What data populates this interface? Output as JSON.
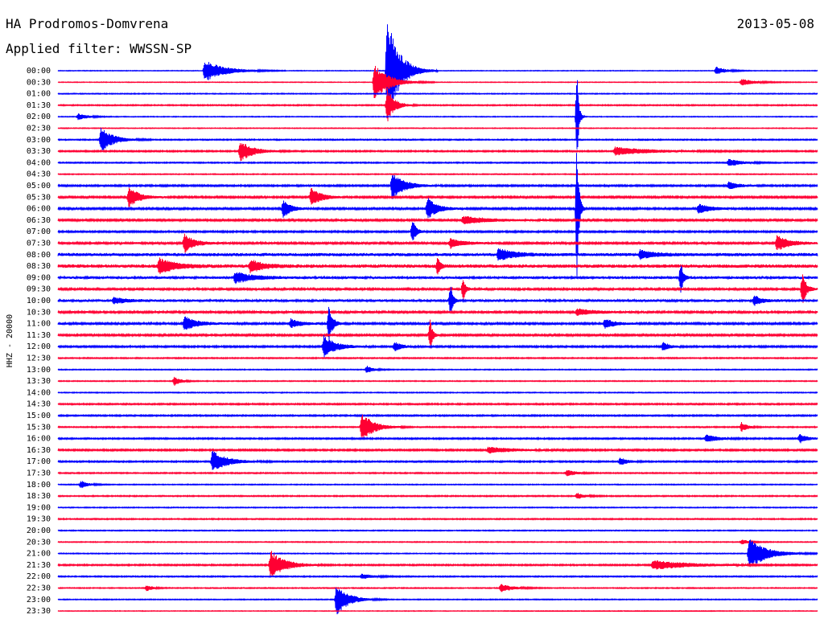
{
  "header": {
    "station": "HA Prodromos-Domvrena",
    "filter": "Applied filter: WWSSN-SP",
    "date": "2013-05-08"
  },
  "colors": {
    "odd_hour_trace": "#0000ff",
    "half_hour_trace": "#ff0033",
    "text": "#000000"
  },
  "chart_data": {
    "type": "line",
    "title": "",
    "channel_label": "HHZ - 20000",
    "row_labels": [
      "00:00",
      "00:30",
      "01:00",
      "01:30",
      "02:00",
      "02:30",
      "03:00",
      "03:30",
      "04:00",
      "04:30",
      "05:00",
      "05:30",
      "06:00",
      "06:30",
      "07:00",
      "07:30",
      "08:00",
      "08:30",
      "09:00",
      "09:30",
      "10:00",
      "10:30",
      "11:00",
      "11:30",
      "12:00",
      "12:30",
      "13:00",
      "13:30",
      "14:00",
      "14:30",
      "15:00",
      "15:30",
      "16:00",
      "16:30",
      "17:00",
      "17:30",
      "18:00",
      "18:30",
      "19:00",
      "19:30",
      "20:00",
      "20:30",
      "21:00",
      "21:30",
      "22:00",
      "22:30",
      "23:00",
      "23:30"
    ],
    "minutes_per_row": 30,
    "noise_level": [
      0.3,
      0.3,
      0.4,
      0.5,
      0.35,
      0.35,
      0.5,
      0.6,
      0.5,
      0.4,
      0.7,
      0.8,
      0.8,
      0.8,
      0.7,
      0.9,
      1.4,
      1.5,
      1.1,
      0.9,
      1.1,
      0.9,
      0.9,
      0.8,
      0.7,
      0.5,
      0.4,
      0.4,
      0.4,
      0.6,
      0.6,
      0.5,
      0.6,
      0.7,
      0.6,
      0.5,
      0.4,
      0.5,
      0.4,
      0.5,
      0.4,
      0.4,
      0.4,
      0.6,
      0.5,
      0.4,
      0.4,
      0.3
    ],
    "events": [
      {
        "row": 0,
        "minute": 5.8,
        "amplitude": 14,
        "duration_min": 1.6
      },
      {
        "row": 0,
        "minute": 13.0,
        "amplitude": 70,
        "duration_min": 1.0
      },
      {
        "row": 0,
        "minute": 26.0,
        "amplitude": 5,
        "duration_min": 0.8
      },
      {
        "row": 1,
        "minute": 12.5,
        "amplitude": 24,
        "duration_min": 1.2
      },
      {
        "row": 1,
        "minute": 27.0,
        "amplitude": 4,
        "duration_min": 1.2
      },
      {
        "row": 3,
        "minute": 13.0,
        "amplitude": 22,
        "duration_min": 0.6
      },
      {
        "row": 4,
        "minute": 0.8,
        "amplitude": 4,
        "duration_min": 0.8
      },
      {
        "row": 4,
        "minute": 20.5,
        "amplitude": 60,
        "duration_min": 0.15
      },
      {
        "row": 6,
        "minute": 1.7,
        "amplitude": 16,
        "duration_min": 1.0
      },
      {
        "row": 7,
        "minute": 7.2,
        "amplitude": 14,
        "duration_min": 1.0
      },
      {
        "row": 7,
        "minute": 22.0,
        "amplitude": 5,
        "duration_min": 3.0
      },
      {
        "row": 8,
        "minute": 26.5,
        "amplitude": 5,
        "duration_min": 1.0
      },
      {
        "row": 10,
        "minute": 13.2,
        "amplitude": 18,
        "duration_min": 1.0
      },
      {
        "row": 10,
        "minute": 26.5,
        "amplitude": 5,
        "duration_min": 0.8
      },
      {
        "row": 11,
        "minute": 2.8,
        "amplitude": 14,
        "duration_min": 0.8
      },
      {
        "row": 11,
        "minute": 10.0,
        "amplitude": 12,
        "duration_min": 0.8
      },
      {
        "row": 12,
        "minute": 8.9,
        "amplitude": 12,
        "duration_min": 0.6
      },
      {
        "row": 12,
        "minute": 14.6,
        "amplitude": 14,
        "duration_min": 0.8
      },
      {
        "row": 12,
        "minute": 20.5,
        "amplitude": 100,
        "duration_min": 0.15
      },
      {
        "row": 12,
        "minute": 25.3,
        "amplitude": 6,
        "duration_min": 1.0
      },
      {
        "row": 13,
        "minute": 16.0,
        "amplitude": 5,
        "duration_min": 2.0
      },
      {
        "row": 14,
        "minute": 14.0,
        "amplitude": 16,
        "duration_min": 0.3
      },
      {
        "row": 15,
        "minute": 5.0,
        "amplitude": 12,
        "duration_min": 0.8
      },
      {
        "row": 15,
        "minute": 15.5,
        "amplitude": 6,
        "duration_min": 1.0
      },
      {
        "row": 15,
        "minute": 28.4,
        "amplitude": 10,
        "duration_min": 1.0
      },
      {
        "row": 16,
        "minute": 17.4,
        "amplitude": 8,
        "duration_min": 1.2
      },
      {
        "row": 16,
        "minute": 23.0,
        "amplitude": 6,
        "duration_min": 1.0
      },
      {
        "row": 17,
        "minute": 4.0,
        "amplitude": 10,
        "duration_min": 1.2
      },
      {
        "row": 17,
        "minute": 7.6,
        "amplitude": 8,
        "duration_min": 1.0
      },
      {
        "row": 17,
        "minute": 15.0,
        "amplitude": 12,
        "duration_min": 0.2
      },
      {
        "row": 18,
        "minute": 7.0,
        "amplitude": 7,
        "duration_min": 1.5
      },
      {
        "row": 18,
        "minute": 24.6,
        "amplitude": 22,
        "duration_min": 0.2
      },
      {
        "row": 19,
        "minute": 16.0,
        "amplitude": 16,
        "duration_min": 0.2
      },
      {
        "row": 19,
        "minute": 29.4,
        "amplitude": 22,
        "duration_min": 0.3
      },
      {
        "row": 20,
        "minute": 2.2,
        "amplitude": 4,
        "duration_min": 1.0
      },
      {
        "row": 20,
        "minute": 15.5,
        "amplitude": 22,
        "duration_min": 0.2
      },
      {
        "row": 20,
        "minute": 27.5,
        "amplitude": 6,
        "duration_min": 0.6
      },
      {
        "row": 21,
        "minute": 20.5,
        "amplitude": 4,
        "duration_min": 1.5
      },
      {
        "row": 22,
        "minute": 5.0,
        "amplitude": 9,
        "duration_min": 1.0
      },
      {
        "row": 22,
        "minute": 9.2,
        "amplitude": 6,
        "duration_min": 0.8
      },
      {
        "row": 22,
        "minute": 10.7,
        "amplitude": 24,
        "duration_min": 0.3
      },
      {
        "row": 22,
        "minute": 21.6,
        "amplitude": 6,
        "duration_min": 0.8
      },
      {
        "row": 23,
        "minute": 14.7,
        "amplitude": 20,
        "duration_min": 0.2
      },
      {
        "row": 24,
        "minute": 10.5,
        "amplitude": 14,
        "duration_min": 1.0
      },
      {
        "row": 24,
        "minute": 13.3,
        "amplitude": 6,
        "duration_min": 0.6
      },
      {
        "row": 24,
        "minute": 23.9,
        "amplitude": 6,
        "duration_min": 0.5
      },
      {
        "row": 26,
        "minute": 12.2,
        "amplitude": 5,
        "duration_min": 0.5
      },
      {
        "row": 27,
        "minute": 4.6,
        "amplitude": 6,
        "duration_min": 0.5
      },
      {
        "row": 31,
        "minute": 12.0,
        "amplitude": 18,
        "duration_min": 1.0
      },
      {
        "row": 31,
        "minute": 27.0,
        "amplitude": 6,
        "duration_min": 0.5
      },
      {
        "row": 32,
        "minute": 25.6,
        "amplitude": 5,
        "duration_min": 1.0
      },
      {
        "row": 32,
        "minute": 29.3,
        "amplitude": 6,
        "duration_min": 0.6
      },
      {
        "row": 33,
        "minute": 17.0,
        "amplitude": 4,
        "duration_min": 2.0
      },
      {
        "row": 34,
        "minute": 6.1,
        "amplitude": 14,
        "duration_min": 1.2
      },
      {
        "row": 34,
        "minute": 22.2,
        "amplitude": 5,
        "duration_min": 0.6
      },
      {
        "row": 35,
        "minute": 20.1,
        "amplitude": 5,
        "duration_min": 0.6
      },
      {
        "row": 36,
        "minute": 0.9,
        "amplitude": 5,
        "duration_min": 0.6
      },
      {
        "row": 37,
        "minute": 20.5,
        "amplitude": 4,
        "duration_min": 0.6
      },
      {
        "row": 41,
        "minute": 27.0,
        "amplitude": 3,
        "duration_min": 0.6
      },
      {
        "row": 42,
        "minute": 27.3,
        "amplitude": 20,
        "duration_min": 1.4
      },
      {
        "row": 43,
        "minute": 8.4,
        "amplitude": 18,
        "duration_min": 1.2
      },
      {
        "row": 43,
        "minute": 23.5,
        "amplitude": 6,
        "duration_min": 3.0
      },
      {
        "row": 44,
        "minute": 12.0,
        "amplitude": 3,
        "duration_min": 1.0
      },
      {
        "row": 45,
        "minute": 3.5,
        "amplitude": 4,
        "duration_min": 0.5
      },
      {
        "row": 45,
        "minute": 17.5,
        "amplitude": 5,
        "duration_min": 1.0
      },
      {
        "row": 46,
        "minute": 11.0,
        "amplitude": 20,
        "duration_min": 1.0
      }
    ],
    "grid": false,
    "legend": "none"
  }
}
